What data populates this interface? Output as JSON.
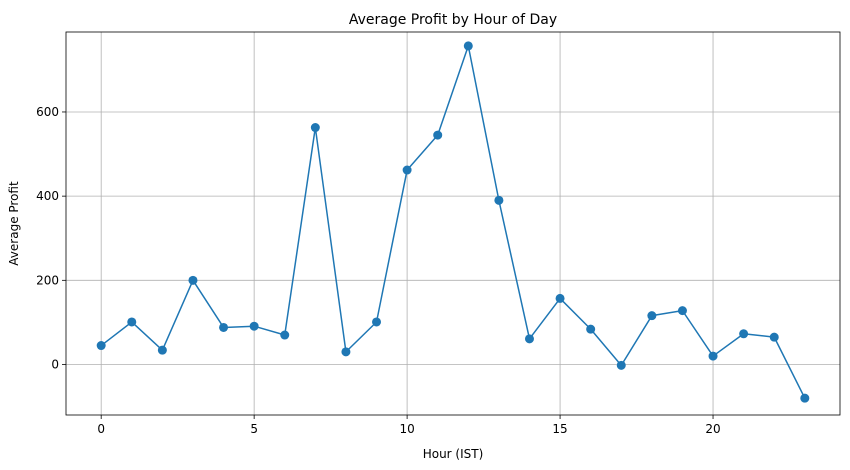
{
  "chart_data": {
    "type": "line",
    "title": "Average Profit by Hour of Day",
    "xlabel": "Hour (IST)",
    "ylabel": "Average Profit",
    "xlim": [
      -1.15,
      24.15
    ],
    "ylim": [
      -120,
      790
    ],
    "x_ticks": [
      0,
      5,
      10,
      15,
      20
    ],
    "y_ticks": [
      0,
      200,
      400,
      600
    ],
    "grid": true,
    "marker": "circle",
    "color": "#1f77b4",
    "series": [
      {
        "x": [
          0,
          1,
          2,
          3,
          4,
          5,
          6,
          7,
          8,
          9,
          10,
          11,
          12,
          13,
          14,
          15,
          16,
          17,
          18,
          19,
          20,
          21,
          22,
          23
        ],
        "values": [
          45,
          101,
          34,
          200,
          88,
          91,
          70,
          563,
          30,
          101,
          462,
          545,
          757,
          390,
          61,
          157,
          84,
          -2,
          116,
          128,
          20,
          73,
          65,
          -80
        ]
      }
    ]
  }
}
